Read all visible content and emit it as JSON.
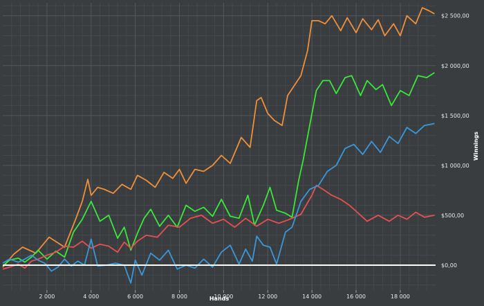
{
  "chart_data": {
    "type": "line",
    "title": "",
    "xlabel": "Hands",
    "ylabel": "Winnings",
    "xlim": [
      0,
      19600
    ],
    "ylim": [
      -250,
      2630
    ],
    "grid": true,
    "y_axis_side": "right",
    "x_ticks": [
      {
        "value": 2000,
        "label": "2 000"
      },
      {
        "value": 4000,
        "label": "4 000"
      },
      {
        "value": 6000,
        "label": "6 000"
      },
      {
        "value": 8000,
        "label": "8 000"
      },
      {
        "value": 10000,
        "label": "10 000"
      },
      {
        "value": 12000,
        "label": "12 000"
      },
      {
        "value": 14000,
        "label": "14 000"
      },
      {
        "value": 16000,
        "label": "16 000"
      },
      {
        "value": 18000,
        "label": "18 000"
      }
    ],
    "y_ticks": [
      {
        "value": 0,
        "label": "$0,00"
      },
      {
        "value": 500,
        "label": "$500,00"
      },
      {
        "value": 1000,
        "label": "$1 000,00"
      },
      {
        "value": 1500,
        "label": "$1 500,00"
      },
      {
        "value": 2000,
        "label": "$2 000,00"
      },
      {
        "value": 2500,
        "label": "$2 500,00"
      }
    ],
    "baseline": 0,
    "series": [
      {
        "color": "#f0903a",
        "x": [
          0,
          500,
          900,
          1500,
          2100,
          2800,
          3300,
          3600,
          3850,
          4000,
          4300,
          4600,
          5000,
          5400,
          5800,
          6100,
          6500,
          6900,
          7300,
          7700,
          8000,
          8300,
          8700,
          9100,
          9500,
          9900,
          10300,
          10800,
          11200,
          11500,
          11700,
          12000,
          12300,
          12650,
          12900,
          13200,
          13500,
          13800,
          14000,
          14300,
          14600,
          14900,
          15300,
          15600,
          16000,
          16300,
          16700,
          17000,
          17300,
          17700,
          18000,
          18300,
          18700,
          19000,
          19300,
          19550
        ],
        "y": [
          -20,
          110,
          180,
          120,
          280,
          180,
          460,
          640,
          860,
          700,
          780,
          760,
          720,
          810,
          760,
          900,
          850,
          780,
          930,
          870,
          960,
          820,
          960,
          940,
          1000,
          1100,
          1020,
          1280,
          1180,
          1650,
          1680,
          1520,
          1450,
          1400,
          1700,
          1800,
          1900,
          2150,
          2450,
          2450,
          2420,
          2500,
          2350,
          2480,
          2330,
          2470,
          2360,
          2460,
          2300,
          2420,
          2300,
          2500,
          2420,
          2580,
          2550,
          2520
        ]
      },
      {
        "color": "#3ae83a",
        "x": [
          0,
          300,
          700,
          1000,
          1300,
          1600,
          2000,
          2400,
          2800,
          3200,
          3600,
          4000,
          4400,
          4800,
          5200,
          5500,
          5800,
          6100,
          6400,
          6700,
          7100,
          7500,
          7900,
          8300,
          8700,
          9100,
          9500,
          9900,
          10300,
          10700,
          11100,
          11400,
          11800,
          12100,
          12400,
          12800,
          13100,
          13400,
          13600,
          13900,
          14200,
          14500,
          14800,
          15100,
          15500,
          15800,
          16200,
          16500,
          16900,
          17200,
          17600,
          18000,
          18400,
          18800,
          19200,
          19550
        ],
        "y": [
          -10,
          50,
          70,
          30,
          80,
          150,
          60,
          140,
          80,
          330,
          460,
          640,
          440,
          500,
          270,
          380,
          150,
          320,
          470,
          560,
          390,
          500,
          380,
          600,
          540,
          580,
          490,
          660,
          490,
          470,
          700,
          400,
          600,
          780,
          550,
          520,
          480,
          850,
          1050,
          1400,
          1750,
          1850,
          1850,
          1720,
          1880,
          1900,
          1700,
          1850,
          1760,
          1810,
          1600,
          1750,
          1700,
          1900,
          1880,
          1930
        ]
      },
      {
        "color": "#e85050",
        "x": [
          0,
          300,
          700,
          1000,
          1300,
          1600,
          2000,
          2400,
          2800,
          3200,
          3600,
          4000,
          4400,
          4800,
          5200,
          5500,
          5800,
          6100,
          6500,
          7000,
          7500,
          8000,
          8500,
          9000,
          9500,
          10000,
          10500,
          11000,
          11500,
          12000,
          12500,
          13000,
          13500,
          14000,
          14200,
          14500,
          14900,
          15300,
          15700,
          16100,
          16500,
          17000,
          17500,
          17900,
          18300,
          18700,
          19100,
          19550
        ],
        "y": [
          -40,
          -20,
          10,
          -30,
          40,
          60,
          100,
          130,
          190,
          180,
          240,
          170,
          210,
          190,
          130,
          230,
          170,
          240,
          300,
          280,
          400,
          380,
          470,
          500,
          420,
          460,
          380,
          470,
          390,
          460,
          420,
          460,
          510,
          700,
          800,
          760,
          700,
          660,
          600,
          520,
          440,
          500,
          440,
          500,
          460,
          530,
          480,
          500
        ]
      },
      {
        "color": "#3a98d8",
        "x": [
          0,
          300,
          700,
          1000,
          1300,
          1600,
          1900,
          2200,
          2500,
          2800,
          3100,
          3400,
          3700,
          4000,
          4300,
          4700,
          5100,
          5500,
          5800,
          6000,
          6300,
          6700,
          7100,
          7500,
          7900,
          8300,
          8700,
          9100,
          9500,
          9900,
          10300,
          10700,
          11000,
          11300,
          11500,
          11800,
          12100,
          12400,
          12800,
          13100,
          13500,
          13900,
          14300,
          14700,
          15100,
          15500,
          15900,
          16300,
          16700,
          17100,
          17500,
          17900,
          18300,
          18700,
          19100,
          19550
        ],
        "y": [
          20,
          60,
          30,
          60,
          100,
          50,
          20,
          -60,
          -20,
          60,
          -10,
          40,
          0,
          260,
          -10,
          0,
          20,
          0,
          -180,
          50,
          -100,
          120,
          50,
          150,
          -40,
          0,
          -30,
          60,
          -20,
          130,
          200,
          10,
          160,
          40,
          290,
          200,
          180,
          10,
          330,
          380,
          640,
          760,
          800,
          940,
          1000,
          1170,
          1210,
          1110,
          1240,
          1130,
          1290,
          1220,
          1380,
          1320,
          1400,
          1420
        ]
      }
    ]
  }
}
